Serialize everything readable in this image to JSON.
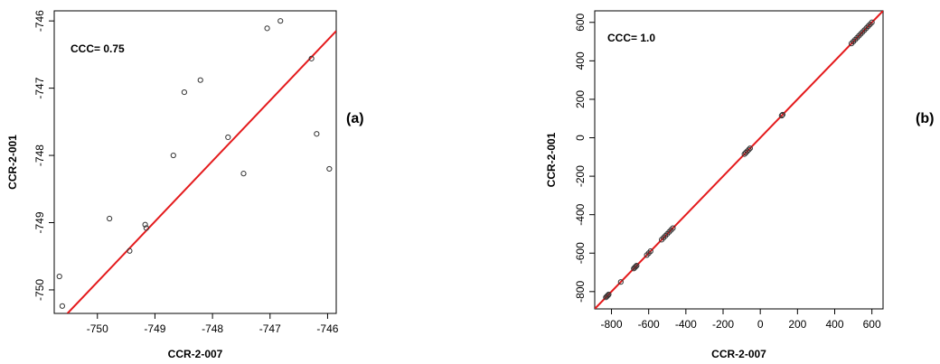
{
  "panels": [
    {
      "panel_label": "(a)",
      "annotation": "CCC= 0.75",
      "chart_data": {
        "type": "scatter",
        "title": "",
        "xlabel": "CCR-2-007",
        "ylabel": "CCR-2-001",
        "xlim": [
          -750.75,
          -745.85
        ],
        "ylim": [
          -750.35,
          -745.85
        ],
        "x_ticks": [
          -750,
          -749,
          -748,
          -747,
          -746
        ],
        "x_tick_labels": [
          "-750",
          "-749",
          "-748",
          "-747",
          "-746"
        ],
        "y_ticks": [
          -750,
          -749,
          -748,
          -747,
          -746
        ],
        "y_tick_labels": [
          "-750",
          "-749",
          "-748",
          "-747",
          "-746"
        ],
        "grid": false,
        "points": [
          {
            "x": -750.66,
            "y": -749.8
          },
          {
            "x": -750.61,
            "y": -750.24
          },
          {
            "x": -749.79,
            "y": -748.94
          },
          {
            "x": -749.44,
            "y": -749.42
          },
          {
            "x": -749.17,
            "y": -749.03
          },
          {
            "x": -749.15,
            "y": -749.08
          },
          {
            "x": -748.68,
            "y": -748.0
          },
          {
            "x": -748.49,
            "y": -747.06
          },
          {
            "x": -748.21,
            "y": -746.88
          },
          {
            "x": -747.73,
            "y": -747.73
          },
          {
            "x": -747.46,
            "y": -748.27
          },
          {
            "x": -747.05,
            "y": -746.11
          },
          {
            "x": -746.82,
            "y": -746.0
          },
          {
            "x": -746.28,
            "y": -746.56
          },
          {
            "x": -746.19,
            "y": -747.68
          },
          {
            "x": -745.97,
            "y": -748.2
          }
        ],
        "fit_line": {
          "x": [
            -750.52,
            -745.85
          ],
          "y": [
            -750.35,
            -746.15
          ]
        },
        "line_color": "#e41a1c"
      }
    },
    {
      "panel_label": "(b)",
      "annotation": "CCC= 1.0",
      "chart_data": {
        "type": "scatter",
        "title": "",
        "xlabel": "CCR-2-007",
        "ylabel": "CCR-2-001",
        "xlim": [
          -890,
          660
        ],
        "ylim": [
          -890,
          660
        ],
        "x_ticks": [
          -800,
          -600,
          -400,
          -200,
          0,
          200,
          400,
          600
        ],
        "x_tick_labels": [
          "-800",
          "-600",
          "-400",
          "-200",
          "0",
          "200",
          "400",
          "600"
        ],
        "y_ticks": [
          -800,
          -600,
          -400,
          -200,
          0,
          200,
          400,
          600
        ],
        "y_tick_labels": [
          "-800",
          "-600",
          "-400",
          "-200",
          "0",
          "200",
          "400",
          "600"
        ],
        "grid": false,
        "points": [
          {
            "x": -830,
            "y": -830
          },
          {
            "x": -825,
            "y": -825
          },
          {
            "x": -820,
            "y": -820
          },
          {
            "x": -815,
            "y": -815
          },
          {
            "x": -750,
            "y": -750
          },
          {
            "x": -680,
            "y": -680
          },
          {
            "x": -675,
            "y": -675
          },
          {
            "x": -670,
            "y": -670
          },
          {
            "x": -665,
            "y": -665
          },
          {
            "x": -610,
            "y": -610
          },
          {
            "x": -600,
            "y": -600
          },
          {
            "x": -590,
            "y": -590
          },
          {
            "x": -530,
            "y": -530
          },
          {
            "x": -520,
            "y": -520
          },
          {
            "x": -510,
            "y": -510
          },
          {
            "x": -500,
            "y": -500
          },
          {
            "x": -490,
            "y": -490
          },
          {
            "x": -480,
            "y": -480
          },
          {
            "x": -470,
            "y": -470
          },
          {
            "x": -85,
            "y": -85
          },
          {
            "x": -78,
            "y": -78
          },
          {
            "x": -70,
            "y": -70
          },
          {
            "x": -62,
            "y": -62
          },
          {
            "x": -55,
            "y": -55
          },
          {
            "x": 115,
            "y": 115
          },
          {
            "x": 120,
            "y": 120
          },
          {
            "x": 490,
            "y": 490
          },
          {
            "x": 500,
            "y": 500
          },
          {
            "x": 510,
            "y": 510
          },
          {
            "x": 520,
            "y": 520
          },
          {
            "x": 530,
            "y": 530
          },
          {
            "x": 540,
            "y": 540
          },
          {
            "x": 550,
            "y": 550
          },
          {
            "x": 560,
            "y": 560
          },
          {
            "x": 570,
            "y": 570
          },
          {
            "x": 580,
            "y": 580
          },
          {
            "x": 590,
            "y": 590
          },
          {
            "x": 600,
            "y": 600
          }
        ],
        "fit_line": {
          "x": [
            -890,
            660
          ],
          "y": [
            -890,
            660
          ]
        },
        "line_color": "#e41a1c"
      }
    }
  ]
}
